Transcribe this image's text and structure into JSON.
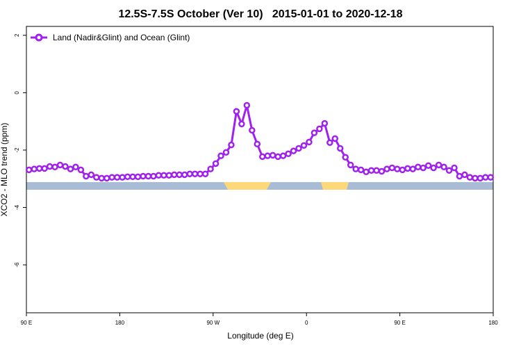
{
  "chart_data": {
    "type": "line",
    "title": "12.5S-7.5S October (Ver 10)   2015-01-01 to 2020-12-18",
    "xlabel": "Longitude (deg E)",
    "ylabel": "XCO2 - MLO trend (ppm)",
    "xlim": [
      90,
      540
    ],
    "ylim": [
      -7.67,
      2.31
    ],
    "xticks": [
      {
        "value": 90,
        "label": "90 E"
      },
      {
        "value": 180,
        "label": "180"
      },
      {
        "value": 270,
        "label": "90 W"
      },
      {
        "value": 360,
        "label": "0"
      },
      {
        "value": 450,
        "label": "90 E"
      },
      {
        "value": 540,
        "label": "180"
      }
    ],
    "yticks": [
      2,
      0,
      -2,
      -4,
      -6
    ],
    "legend_position": "upper left",
    "x": [
      92.5,
      97.5,
      102.5,
      107.5,
      112.5,
      117.5,
      122.5,
      127.5,
      132.5,
      137.5,
      142.5,
      147.5,
      152.5,
      157.5,
      162.5,
      167.5,
      172.5,
      177.5,
      182.5,
      187.5,
      192.5,
      197.5,
      202.5,
      207.5,
      212.5,
      217.5,
      222.5,
      227.5,
      232.5,
      237.5,
      242.5,
      247.5,
      252.5,
      257.5,
      262.5,
      267.5,
      272.5,
      277.5,
      282.5,
      287.5,
      292.5,
      297.5,
      302.5,
      307.5,
      312.5,
      317.5,
      322.5,
      327.5,
      332.5,
      337.5,
      342.5,
      347.5,
      352.5,
      357.5,
      362.5,
      367.5,
      372.5,
      377.5,
      382.5,
      387.5,
      392.5,
      397.5,
      402.5,
      407.5,
      412.5,
      417.5,
      422.5,
      427.5,
      432.5,
      437.5,
      442.5,
      447.5,
      452.5,
      457.5,
      462.5,
      467.5,
      472.5,
      477.5,
      482.5,
      487.5,
      492.5,
      497.5,
      502.5,
      507.5,
      512.5,
      517.5,
      522.5,
      527.5,
      532.5,
      537.5
    ],
    "series": [
      {
        "name": "Land (Nadir&Glint) and Ocean (Glint)",
        "color": "#a020f0",
        "values": [
          -2.69,
          -2.66,
          -2.64,
          -2.64,
          -2.57,
          -2.59,
          -2.52,
          -2.57,
          -2.66,
          -2.59,
          -2.69,
          -2.91,
          -2.86,
          -2.95,
          -2.98,
          -2.98,
          -2.95,
          -2.95,
          -2.95,
          -2.93,
          -2.93,
          -2.93,
          -2.91,
          -2.91,
          -2.91,
          -2.88,
          -2.88,
          -2.88,
          -2.86,
          -2.86,
          -2.86,
          -2.83,
          -2.83,
          -2.83,
          -2.83,
          -2.66,
          -2.47,
          -2.2,
          -2.08,
          -1.82,
          -0.65,
          -1.09,
          -0.44,
          -1.31,
          -1.79,
          -2.23,
          -2.2,
          -2.18,
          -2.23,
          -2.2,
          -2.13,
          -2.03,
          -1.94,
          -1.84,
          -1.72,
          -1.4,
          -1.26,
          -1.07,
          -1.74,
          -1.6,
          -1.94,
          -2.25,
          -2.52,
          -2.66,
          -2.69,
          -2.76,
          -2.71,
          -2.71,
          -2.74,
          -2.66,
          -2.62,
          -2.66,
          -2.69,
          -2.64,
          -2.66,
          -2.59,
          -2.62,
          -2.54,
          -2.62,
          -2.52,
          -2.59,
          -2.71,
          -2.62,
          -2.91,
          -2.86,
          -2.95,
          -2.98,
          -2.98,
          -2.95,
          -2.95
        ]
      }
    ]
  }
}
